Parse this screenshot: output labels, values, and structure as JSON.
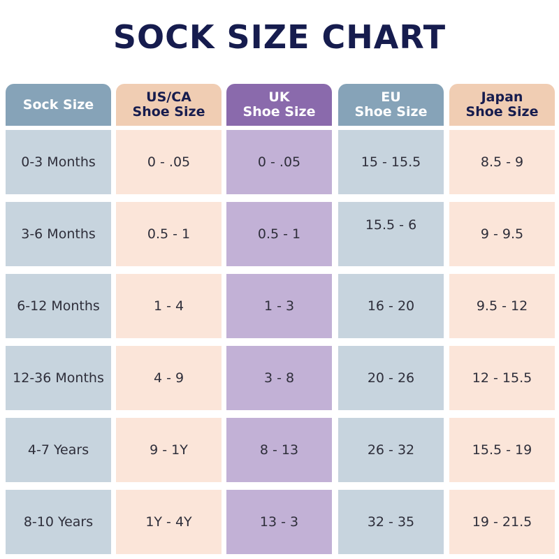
{
  "title": "SOCK SIZE CHART",
  "columns": [
    {
      "header": "Sock Size",
      "cells": [
        "0-3 Months",
        "3-6 Months",
        "6-12 Months",
        "12-36 Months",
        "4-7 Years",
        "8-10 Years"
      ]
    },
    {
      "header": "US/CA\nShoe Size",
      "cells": [
        "0 - .05",
        "0.5 - 1",
        "1 - 4",
        "4 - 9",
        "9 - 1Y",
        "1Y - 4Y"
      ]
    },
    {
      "header": "UK\nShoe Size",
      "cells": [
        "0 - .05",
        "0.5 - 1",
        "1 - 3",
        "3 - 8",
        "8 - 13",
        "13 - 3"
      ]
    },
    {
      "header": "EU\nShoe Size",
      "cells": [
        "15 - 15.5",
        "15.5 - 6",
        "16 - 20",
        "20 - 26",
        "26 - 32",
        "32 - 35"
      ]
    },
    {
      "header": "Japan\nShoe Size",
      "cells": [
        "8.5 - 9",
        "9 - 9.5",
        "9.5 - 12",
        "12 - 15.5",
        "15.5 - 19",
        "19 - 21.5"
      ]
    }
  ],
  "colors": {
    "title": "#161c4e",
    "blue_header": "#86a3b8",
    "blue_cell": "#c7d4de",
    "peach_header": "#f0cdb3",
    "peach_cell": "#fbe5d9",
    "purple_header": "#8a6aac",
    "purple_cell": "#c2b1d6"
  }
}
